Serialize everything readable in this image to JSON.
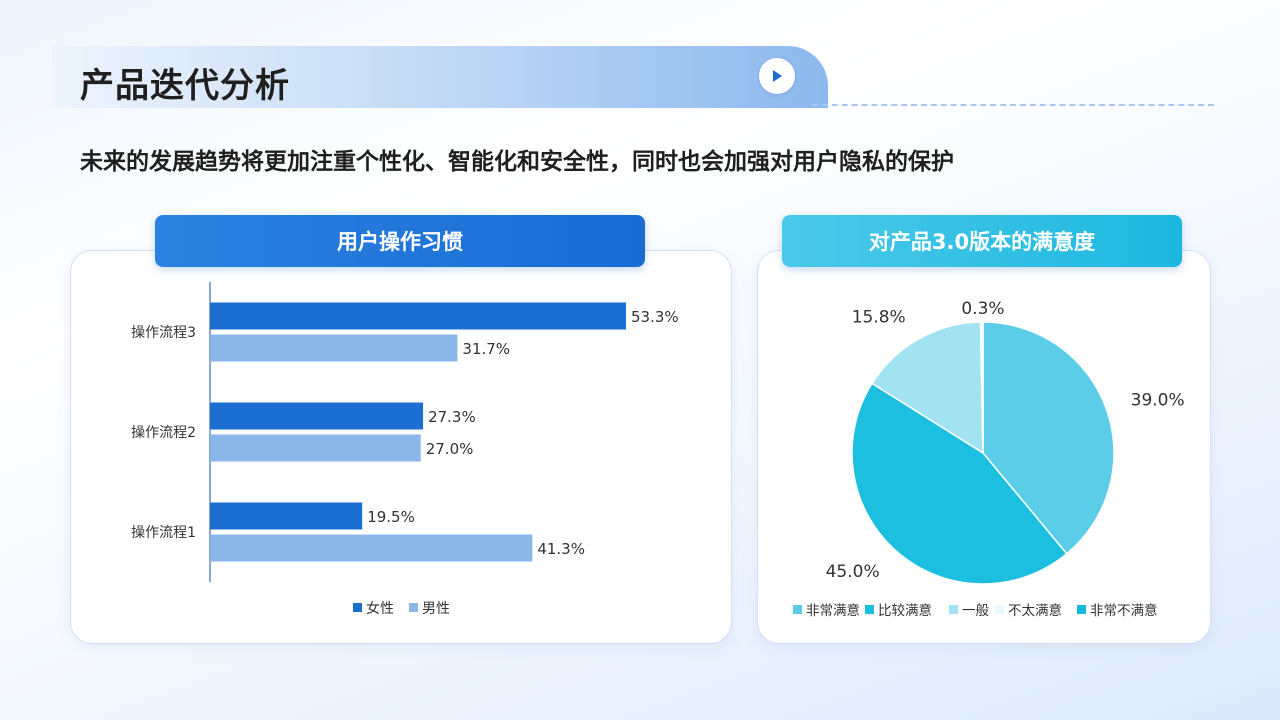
{
  "header": {
    "title": "产品迭代分析",
    "subtitle": "未来的发展趋势将更加注重个性化、智能化和安全性，同时也会加强对用户隐私的保护"
  },
  "colors": {
    "female": "#1a6fd1",
    "male": "#8ab6e8",
    "pie": [
      "#5ccde8",
      "#1cbfe0",
      "#a2e3f2",
      "#e8f8fc",
      "#15b9dc"
    ]
  },
  "bar_card": {
    "title": "用户操作习惯"
  },
  "pie_card": {
    "title": "对产品3.0版本的满意度"
  },
  "chart_data": [
    {
      "type": "bar",
      "orientation": "horizontal",
      "title": "用户操作习惯",
      "categories": [
        "操作流程3",
        "操作流程2",
        "操作流程1"
      ],
      "series": [
        {
          "name": "女性",
          "values": [
            53.3,
            27.3,
            19.5
          ],
          "labels": [
            "53.3%",
            "27.3%",
            "19.5%"
          ]
        },
        {
          "name": "男性",
          "values": [
            31.7,
            27.0,
            41.3
          ],
          "labels": [
            "31.7%",
            "27.0%",
            "41.3%"
          ]
        }
      ],
      "xlim": [
        0,
        60
      ],
      "legend": "bottom"
    },
    {
      "type": "pie",
      "title": "对产品3.0版本的满意度",
      "categories": [
        "非常满意",
        "比较满意",
        "一般",
        "不太满意",
        "非常不满意"
      ],
      "values": [
        39.0,
        45.0,
        15.8,
        0.3,
        0.0
      ],
      "labels": [
        "39.0%",
        "45.0%",
        "15.8%",
        "0.3%",
        ""
      ],
      "legend": "bottom"
    }
  ]
}
